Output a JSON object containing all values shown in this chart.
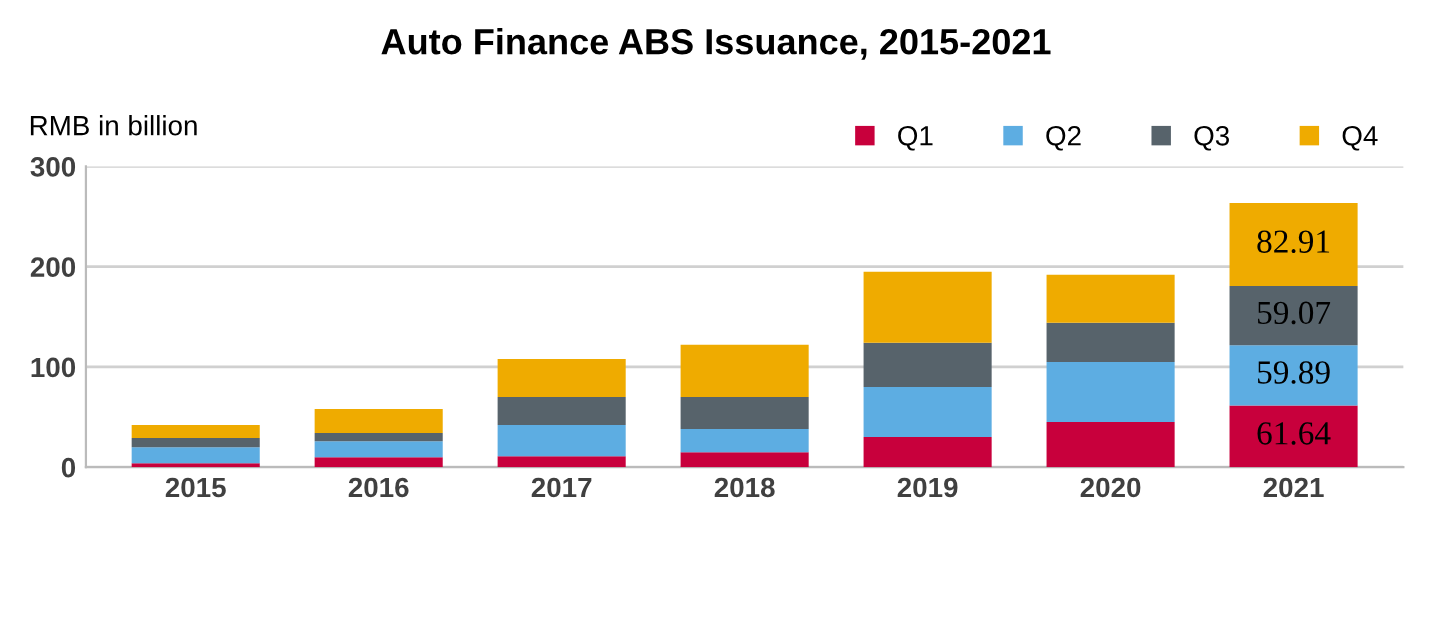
{
  "chart_data": {
    "type": "bar",
    "stacked": true,
    "title": "Auto Finance ABS Issuance, 2015-2021",
    "ylabel": "RMB in billion",
    "categories": [
      "2015",
      "2016",
      "2017",
      "2018",
      "2019",
      "2020",
      "2021"
    ],
    "series": [
      {
        "name": "Q1",
        "color": "#c8003c",
        "values": [
          4,
          10,
          11,
          15,
          30,
          45,
          61.64
        ],
        "value_labels": [
          null,
          null,
          null,
          null,
          null,
          null,
          "61.64"
        ]
      },
      {
        "name": "Q2",
        "color": "#5dade2",
        "values": [
          16,
          16,
          31,
          23,
          50,
          60,
          59.89
        ],
        "value_labels": [
          null,
          null,
          null,
          null,
          null,
          null,
          "59.89"
        ]
      },
      {
        "name": "Q3",
        "color": "#57636b",
        "values": [
          9,
          8,
          28,
          32,
          44,
          39,
          59.07
        ],
        "value_labels": [
          null,
          null,
          null,
          null,
          null,
          null,
          "59.07"
        ]
      },
      {
        "name": "Q4",
        "color": "#efab00",
        "values": [
          13,
          24,
          38,
          52,
          71,
          48,
          82.91
        ],
        "value_labels": [
          null,
          null,
          null,
          null,
          null,
          null,
          "82.91"
        ]
      }
    ],
    "ylim": [
      0,
      300
    ],
    "yticks": [
      0,
      100,
      200,
      300
    ],
    "grid": "y",
    "legend": "top right"
  }
}
